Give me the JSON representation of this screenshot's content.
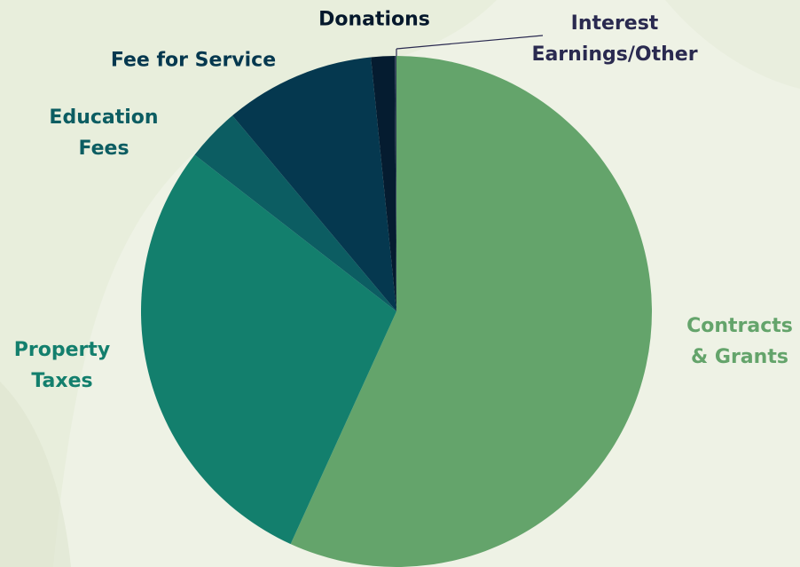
{
  "chart_data": {
    "type": "pie",
    "start_angle_deg": 0,
    "direction": "clockwise",
    "slices": [
      {
        "label_lines": [
          "Contracts",
          "& Grants"
        ],
        "value": 56.8,
        "color": "#64a46b",
        "label_color": "#64a46b"
      },
      {
        "label_lines": [
          "Property",
          "Taxes"
        ],
        "value": 28.7,
        "color": "#137f6d",
        "label_color": "#137f6d"
      },
      {
        "label_lines": [
          "Education",
          "Fees"
        ],
        "value": 3.4,
        "color": "#0c5d62",
        "label_color": "#0c5d62"
      },
      {
        "label_lines": [
          "Fee for Service"
        ],
        "value": 9.5,
        "color": "#05384f",
        "label_color": "#05384f"
      },
      {
        "label_lines": [
          "Donations"
        ],
        "value": 1.5,
        "color": "#051c30",
        "label_color": "#05182c"
      },
      {
        "label_lines": [
          "Interest",
          "Earnings/Other"
        ],
        "value": 0.1,
        "color": "#2c3b54",
        "label_color": "#2a2a50"
      }
    ]
  }
}
